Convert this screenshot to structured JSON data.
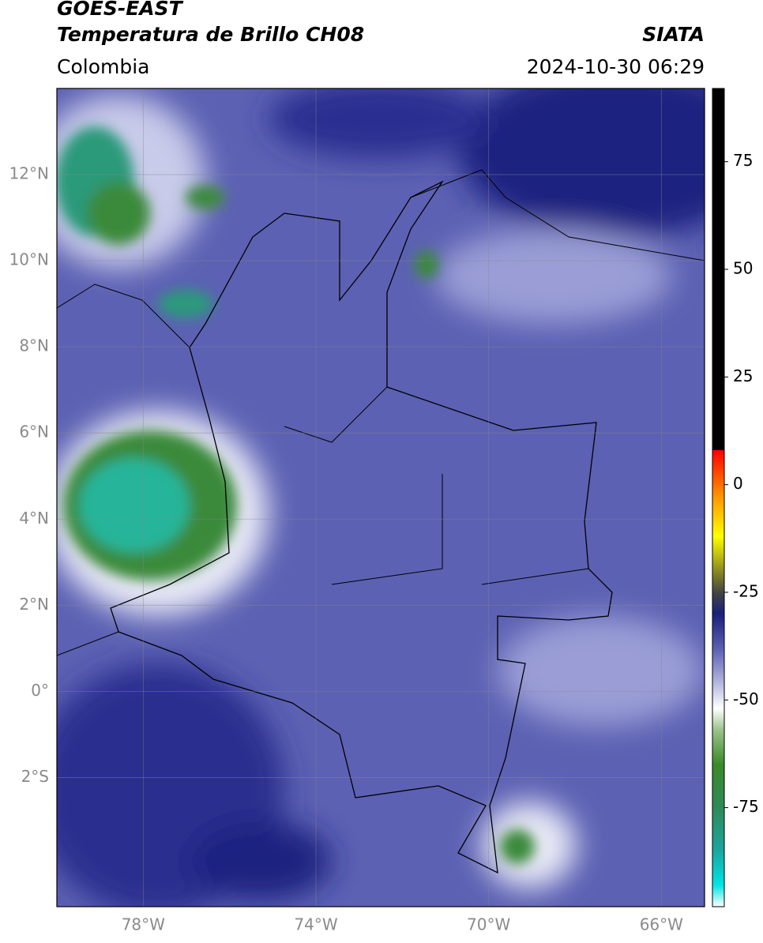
{
  "header": {
    "title": "GOES-EAST",
    "subtitle": "Temperatura de Brillo CH08",
    "source": "SIATA",
    "region": "Colombia",
    "timestamp": "2024-10-30 06:29"
  },
  "map": {
    "lon_lim": [
      -80,
      -65
    ],
    "lat_lim": [
      -5,
      14
    ],
    "lon_ticks": [
      {
        "value": -78,
        "label": "78°W"
      },
      {
        "value": -74,
        "label": "74°W"
      },
      {
        "value": -70,
        "label": "70°W"
      },
      {
        "value": -66,
        "label": "66°W"
      }
    ],
    "lat_ticks": [
      {
        "value": 12,
        "label": "12°N"
      },
      {
        "value": 10,
        "label": "10°N"
      },
      {
        "value": 8,
        "label": "8°N"
      },
      {
        "value": 6,
        "label": "6°N"
      },
      {
        "value": 4,
        "label": "4°N"
      },
      {
        "value": 2,
        "label": "2°N"
      },
      {
        "value": 0,
        "label": "0°"
      },
      {
        "value": -2,
        "label": "2°S"
      }
    ]
  },
  "colorbar": {
    "lim": [
      -98,
      92
    ],
    "ticks": [
      75,
      50,
      25,
      0,
      -25,
      -50,
      -75
    ],
    "stops": [
      {
        "value": -98,
        "color": "#ffffff"
      },
      {
        "value": -93,
        "color": "#00e5e5"
      },
      {
        "value": -85,
        "color": "#1aa6a0"
      },
      {
        "value": -75,
        "color": "#2e8b57"
      },
      {
        "value": -65,
        "color": "#3b8a2a"
      },
      {
        "value": -57,
        "color": "#9ac28a"
      },
      {
        "value": -52,
        "color": "#ffffff"
      },
      {
        "value": -45,
        "color": "#a8abd8"
      },
      {
        "value": -38,
        "color": "#5a5fb2"
      },
      {
        "value": -30,
        "color": "#1a1f7a"
      },
      {
        "value": -25,
        "color": "#444444"
      },
      {
        "value": -20,
        "color": "#8b8b20"
      },
      {
        "value": -12,
        "color": "#ffff00"
      },
      {
        "value": -3,
        "color": "#ff9900"
      },
      {
        "value": 8,
        "color": "#ff0000"
      },
      {
        "value": 8.01,
        "color": "#000000"
      },
      {
        "value": 92,
        "color": "#000000"
      }
    ]
  }
}
